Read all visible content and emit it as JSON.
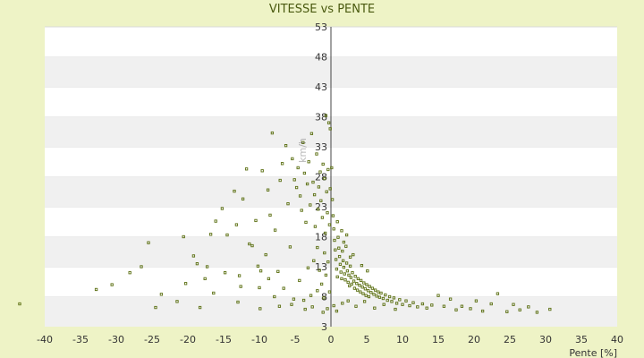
{
  "chart_data": {
    "type": "scatter",
    "title": "VITESSE vs PENTE",
    "xlabel": "Pente [%]",
    "ylabel": "km/h",
    "xlim": [
      -40,
      40
    ],
    "ylim": [
      3,
      53
    ],
    "x_ticks": [
      "-40",
      "-35",
      "-30",
      "-25",
      "-20",
      "-15",
      "-10",
      "-5",
      "0",
      "5",
      "10",
      "15",
      "20",
      "25",
      "30",
      "35",
      "40"
    ],
    "y_ticks": [
      "3",
      "8",
      "13",
      "18",
      "23",
      "28",
      "33",
      "38",
      "43",
      "48",
      "53"
    ],
    "grid": "horizontal bands",
    "colors": {
      "page_bg": "#eef3c6",
      "plot_band_light": "#ffffff",
      "plot_band_dark": "#f0f0f0",
      "point": "#5a6e10",
      "title": "#4a5a10"
    },
    "series": [
      {
        "points": [
          [
            -43.5,
            6.8
          ],
          [
            -32.8,
            9.2
          ],
          [
            -30.6,
            10.0
          ],
          [
            -28.1,
            12.0
          ],
          [
            -26.5,
            13.0
          ],
          [
            -25.5,
            17.0
          ],
          [
            -24.5,
            6.2
          ],
          [
            -23.7,
            8.4
          ],
          [
            -21.5,
            7.2
          ],
          [
            -20.6,
            18.0
          ],
          [
            -20.3,
            10.2
          ],
          [
            -19.2,
            14.8
          ],
          [
            -18.7,
            13.5
          ],
          [
            -18.3,
            6.2
          ],
          [
            -17.3,
            13.0
          ],
          [
            -16.8,
            18.4
          ],
          [
            -16.1,
            20.6
          ],
          [
            -15.2,
            22.7
          ],
          [
            -14.5,
            18.3
          ],
          [
            -13.5,
            25.6
          ],
          [
            -12.8,
            11.5
          ],
          [
            -12.6,
            9.7
          ],
          [
            -12.3,
            24.3
          ],
          [
            -11.8,
            29.3
          ],
          [
            -11.0,
            16.5
          ],
          [
            -10.5,
            20.7
          ],
          [
            -10.2,
            13.1
          ],
          [
            -10.0,
            9.5
          ],
          [
            -9.6,
            29.0
          ],
          [
            -9.1,
            15.0
          ],
          [
            -8.8,
            25.8
          ],
          [
            -8.5,
            21.6
          ],
          [
            -8.2,
            35.3
          ],
          [
            -7.8,
            19.1
          ],
          [
            -7.4,
            12.2
          ],
          [
            -7.1,
            27.4
          ],
          [
            -6.8,
            30.2
          ],
          [
            -6.3,
            33.2
          ],
          [
            -6.0,
            23.5
          ],
          [
            -5.7,
            16.3
          ],
          [
            -5.4,
            31.0
          ],
          [
            -5.1,
            27.5
          ],
          [
            -4.8,
            26.2
          ],
          [
            -4.6,
            29.5
          ],
          [
            -4.3,
            24.8
          ],
          [
            -4.1,
            22.4
          ],
          [
            -3.9,
            33.7
          ],
          [
            -3.7,
            28.6
          ],
          [
            -3.5,
            20.4
          ],
          [
            -3.3,
            26.8
          ],
          [
            -3.1,
            30.5
          ],
          [
            -2.9,
            23.3
          ],
          [
            -2.7,
            35.2
          ],
          [
            -2.5,
            27.1
          ],
          [
            -2.3,
            25.0
          ],
          [
            -2.2,
            19.7
          ],
          [
            -2.0,
            31.8
          ],
          [
            -1.8,
            22.6
          ],
          [
            -1.7,
            26.3
          ],
          [
            -1.5,
            28.8
          ],
          [
            -1.4,
            24.0
          ],
          [
            -1.2,
            21.2
          ],
          [
            -1.1,
            30.1
          ],
          [
            -0.9,
            27.7
          ],
          [
            -0.8,
            18.6
          ],
          [
            -0.6,
            25.5
          ],
          [
            -0.5,
            22.0
          ],
          [
            -0.4,
            29.2
          ],
          [
            -0.2,
            20.0
          ],
          [
            -0.1,
            26.0
          ],
          [
            -2.4,
            14.0
          ],
          [
            -1.9,
            16.2
          ],
          [
            -1.6,
            12.4
          ],
          [
            -1.3,
            10.1
          ],
          [
            -0.9,
            15.3
          ],
          [
            -0.7,
            11.6
          ],
          [
            -0.4,
            13.8
          ],
          [
            -0.2,
            8.8
          ],
          [
            -3.2,
            12.8
          ],
          [
            -4.4,
            10.7
          ],
          [
            -5.2,
            7.6
          ],
          [
            -6.6,
            9.4
          ],
          [
            -7.9,
            8.0
          ],
          [
            -8.7,
            11.0
          ],
          [
            -9.8,
            12.3
          ],
          [
            -11.4,
            16.8
          ],
          [
            -13.2,
            20.0
          ],
          [
            -14.8,
            12.0
          ],
          [
            -16.4,
            8.6
          ],
          [
            -17.6,
            11.0
          ],
          [
            -0.3,
            37.0
          ],
          [
            -0.1,
            36.0
          ],
          [
            -0.7,
            38.2
          ],
          [
            0.1,
            29.5
          ],
          [
            0.2,
            24.2
          ],
          [
            0.3,
            21.5
          ],
          [
            0.4,
            19.3
          ],
          [
            0.5,
            17.4
          ],
          [
            0.6,
            15.8
          ],
          [
            0.7,
            14.2
          ],
          [
            0.8,
            12.6
          ],
          [
            0.9,
            11.3
          ],
          [
            1.0,
            17.9
          ],
          [
            1.1,
            16.1
          ],
          [
            1.2,
            14.7
          ],
          [
            1.3,
            13.4
          ],
          [
            1.4,
            12.1
          ],
          [
            1.5,
            11.0
          ],
          [
            1.6,
            15.6
          ],
          [
            1.7,
            14.0
          ],
          [
            1.8,
            12.9
          ],
          [
            1.9,
            11.8
          ],
          [
            2.0,
            10.8
          ],
          [
            2.1,
            16.4
          ],
          [
            2.2,
            13.6
          ],
          [
            2.3,
            12.3
          ],
          [
            2.4,
            10.4
          ],
          [
            2.5,
            11.6
          ],
          [
            2.6,
            9.8
          ],
          [
            2.7,
            13.1
          ],
          [
            2.8,
            11.2
          ],
          [
            2.9,
            10.1
          ],
          [
            3.0,
            12.0
          ],
          [
            3.2,
            10.6
          ],
          [
            3.3,
            9.4
          ],
          [
            3.4,
            11.4
          ],
          [
            3.6,
            10.2
          ],
          [
            3.7,
            9.1
          ],
          [
            3.8,
            11.0
          ],
          [
            4.0,
            9.9
          ],
          [
            4.1,
            8.8
          ],
          [
            4.2,
            10.7
          ],
          [
            4.4,
            9.6
          ],
          [
            4.5,
            8.5
          ],
          [
            4.6,
            10.3
          ],
          [
            4.8,
            9.3
          ],
          [
            4.9,
            8.2
          ],
          [
            5.0,
            10.0
          ],
          [
            5.2,
            9.0
          ],
          [
            5.3,
            8.0
          ],
          [
            5.4,
            9.7
          ],
          [
            5.6,
            8.7
          ],
          [
            5.8,
            9.4
          ],
          [
            6.0,
            8.4
          ],
          [
            6.2,
            9.1
          ],
          [
            6.4,
            8.1
          ],
          [
            6.6,
            8.8
          ],
          [
            6.8,
            7.9
          ],
          [
            7.0,
            8.6
          ],
          [
            7.3,
            7.7
          ],
          [
            7.6,
            8.3
          ],
          [
            7.9,
            7.4
          ],
          [
            8.2,
            8.0
          ],
          [
            8.5,
            7.2
          ],
          [
            8.8,
            7.8
          ],
          [
            9.2,
            6.9
          ],
          [
            9.6,
            7.5
          ],
          [
            10.0,
            6.7
          ],
          [
            10.5,
            7.3
          ],
          [
            11.0,
            6.5
          ],
          [
            11.5,
            7.0
          ],
          [
            12.1,
            6.3
          ],
          [
            12.8,
            6.8
          ],
          [
            13.4,
            6.1
          ],
          [
            14.1,
            6.6
          ],
          [
            15.0,
            8.2
          ],
          [
            15.8,
            6.4
          ],
          [
            16.7,
            7.6
          ],
          [
            17.5,
            5.8
          ],
          [
            18.3,
            6.4
          ],
          [
            19.5,
            6.0
          ],
          [
            20.3,
            7.3
          ],
          [
            21.2,
            5.6
          ],
          [
            22.4,
            6.8
          ],
          [
            23.3,
            8.5
          ],
          [
            24.6,
            5.5
          ],
          [
            25.5,
            6.7
          ],
          [
            26.4,
            5.8
          ],
          [
            27.6,
            6.3
          ],
          [
            28.8,
            5.4
          ],
          [
            30.6,
            5.9
          ],
          [
            2.2,
            18.3
          ],
          [
            1.5,
            19.0
          ],
          [
            0.9,
            20.5
          ],
          [
            3.1,
            15.0
          ],
          [
            2.7,
            14.6
          ],
          [
            1.8,
            17.1
          ],
          [
            4.3,
            13.2
          ],
          [
            5.1,
            12.3
          ],
          [
            0.4,
            6.5
          ],
          [
            0.8,
            5.6
          ],
          [
            1.6,
            6.9
          ],
          [
            2.4,
            7.3
          ],
          [
            3.5,
            6.4
          ],
          [
            4.7,
            7.2
          ],
          [
            6.1,
            6.1
          ],
          [
            7.4,
            6.7
          ],
          [
            9.0,
            5.9
          ],
          [
            -0.5,
            6.0
          ],
          [
            -1.1,
            5.4
          ],
          [
            -2.6,
            6.3
          ],
          [
            -3.6,
            5.9
          ],
          [
            -5.5,
            6.7
          ],
          [
            -7.2,
            6.4
          ],
          [
            -9.9,
            6.0
          ],
          [
            -13.0,
            7.1
          ],
          [
            -1.9,
            9.0
          ],
          [
            -2.8,
            8.2
          ],
          [
            -3.8,
            7.4
          ],
          [
            -1.0,
            7.8
          ]
        ]
      }
    ]
  }
}
